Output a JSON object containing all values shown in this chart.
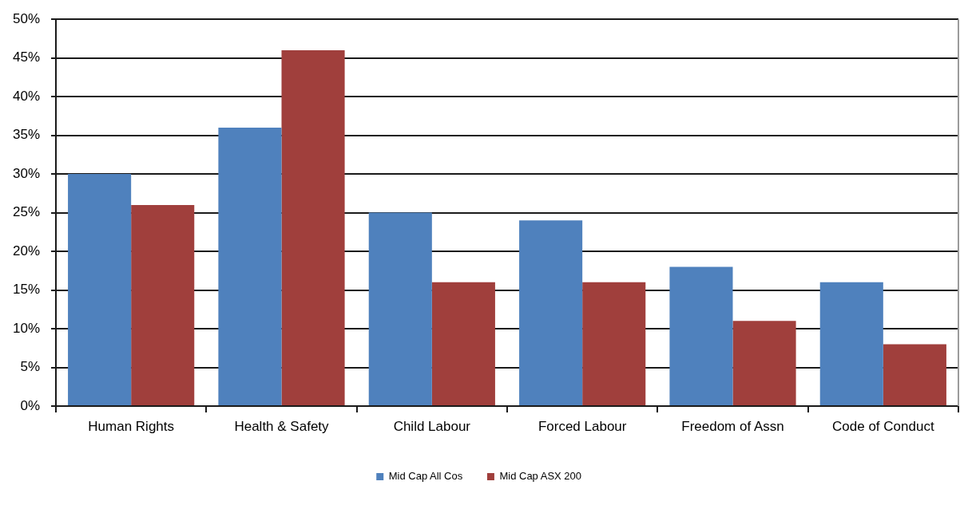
{
  "chart_data": {
    "type": "bar",
    "categories": [
      "Human Rights",
      "Health & Safety",
      "Child Labour",
      "Forced Labour",
      "Freedom of Assn",
      "Code of Conduct"
    ],
    "series": [
      {
        "name": "Mid Cap All Cos",
        "color": "#4f81bd",
        "values": [
          30,
          36,
          25,
          24,
          18,
          16
        ]
      },
      {
        "name": "Mid Cap ASX 200",
        "color": "#a03f3c",
        "values": [
          26,
          46,
          16,
          16,
          11,
          8
        ]
      }
    ],
    "ylim": [
      0,
      50
    ],
    "yticks": [
      {
        "value": 0,
        "label": "0%"
      },
      {
        "value": 5,
        "label": "5%"
      },
      {
        "value": 10,
        "label": "10%"
      },
      {
        "value": 15,
        "label": "15%"
      },
      {
        "value": 20,
        "label": "20%"
      },
      {
        "value": 25,
        "label": "25%"
      },
      {
        "value": 30,
        "label": "30%"
      },
      {
        "value": 35,
        "label": "35%"
      },
      {
        "value": 40,
        "label": "40%"
      },
      {
        "value": 45,
        "label": "45%"
      },
      {
        "value": 50,
        "label": "50%"
      }
    ],
    "grid": "y",
    "legend": "bottom"
  }
}
